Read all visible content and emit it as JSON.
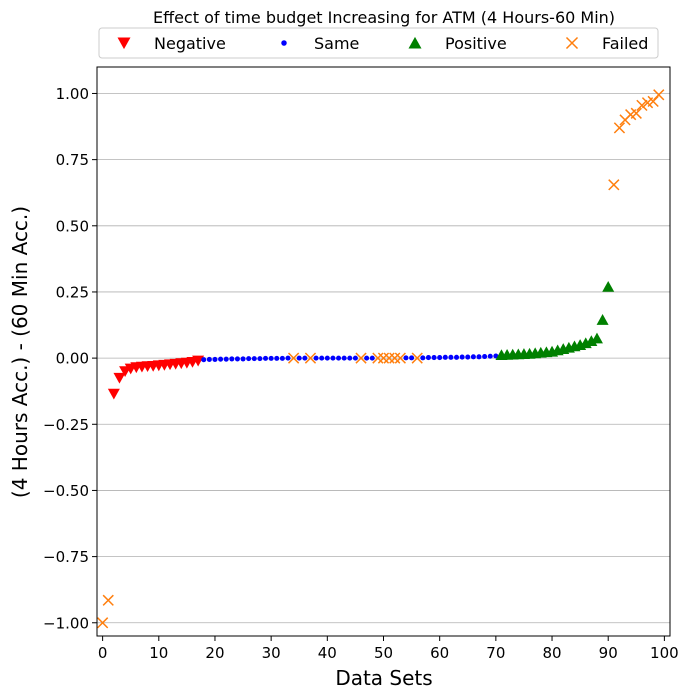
{
  "chart_data": {
    "type": "scatter",
    "title": "Effect of time budget Increasing for ATM (4 Hours-60 Min)",
    "xlabel": "Data Sets",
    "ylabel": "(4 Hours Acc.) - (60 Min Acc.)",
    "xlim": [
      -1,
      101
    ],
    "ylim": [
      -1.05,
      1.1
    ],
    "x_ticks": [
      0,
      10,
      20,
      30,
      40,
      50,
      60,
      70,
      80,
      90,
      100
    ],
    "x_tick_labels": [
      "0",
      "10",
      "20",
      "30",
      "40",
      "50",
      "60",
      "70",
      "80",
      "90",
      "100"
    ],
    "y_ticks": [
      -1.0,
      -0.75,
      -0.5,
      -0.25,
      0.0,
      0.25,
      0.5,
      0.75,
      1.0
    ],
    "y_tick_labels": [
      "−1.00",
      "−0.75",
      "−0.50",
      "−0.25",
      "0.00",
      "0.25",
      "0.50",
      "0.75",
      "1.00"
    ],
    "grid": "horizontal",
    "legend_position": "top",
    "series": [
      {
        "name": "Negative",
        "marker": "triangle-down",
        "color": "#ff0000",
        "points": [
          [
            2,
            -0.135
          ],
          [
            3,
            -0.075
          ],
          [
            4,
            -0.05
          ],
          [
            5,
            -0.04
          ],
          [
            6,
            -0.035
          ],
          [
            7,
            -0.033
          ],
          [
            8,
            -0.031
          ],
          [
            9,
            -0.03
          ],
          [
            10,
            -0.028
          ],
          [
            11,
            -0.026
          ],
          [
            12,
            -0.024
          ],
          [
            13,
            -0.022
          ],
          [
            14,
            -0.02
          ],
          [
            15,
            -0.018
          ],
          [
            16,
            -0.015
          ],
          [
            17,
            -0.01
          ]
        ]
      },
      {
        "name": "Same",
        "marker": "circle",
        "color": "#0000ff",
        "points": [
          [
            18,
            -0.006
          ],
          [
            19,
            -0.005
          ],
          [
            20,
            -0.005
          ],
          [
            21,
            -0.004
          ],
          [
            22,
            -0.004
          ],
          [
            23,
            -0.003
          ],
          [
            24,
            -0.003
          ],
          [
            25,
            -0.003
          ],
          [
            26,
            -0.002
          ],
          [
            27,
            -0.002
          ],
          [
            28,
            -0.002
          ],
          [
            29,
            -0.001
          ],
          [
            30,
            -0.001
          ],
          [
            31,
            -0.001
          ],
          [
            32,
            -0.001
          ],
          [
            33,
            0
          ],
          [
            35,
            0
          ],
          [
            36,
            0
          ],
          [
            38,
            0
          ],
          [
            39,
            0
          ],
          [
            40,
            0
          ],
          [
            41,
            0
          ],
          [
            42,
            0
          ],
          [
            43,
            0
          ],
          [
            44,
            0
          ],
          [
            45,
            0
          ],
          [
            47,
            0
          ],
          [
            48,
            0
          ],
          [
            54,
            0.001
          ],
          [
            55,
            0.001
          ],
          [
            57,
            0.001
          ],
          [
            58,
            0.002
          ],
          [
            59,
            0.002
          ],
          [
            60,
            0.002
          ],
          [
            61,
            0.003
          ],
          [
            62,
            0.003
          ],
          [
            63,
            0.003
          ],
          [
            64,
            0.004
          ],
          [
            65,
            0.004
          ],
          [
            66,
            0.005
          ],
          [
            67,
            0.005
          ],
          [
            68,
            0.006
          ],
          [
            69,
            0.007
          ],
          [
            70,
            0.008
          ]
        ]
      },
      {
        "name": "Positive",
        "marker": "triangle-up",
        "color": "#008000",
        "points": [
          [
            71,
            0.012
          ],
          [
            72,
            0.013
          ],
          [
            73,
            0.014
          ],
          [
            74,
            0.015
          ],
          [
            75,
            0.016
          ],
          [
            76,
            0.017
          ],
          [
            77,
            0.019
          ],
          [
            78,
            0.021
          ],
          [
            79,
            0.023
          ],
          [
            80,
            0.025
          ],
          [
            81,
            0.03
          ],
          [
            82,
            0.035
          ],
          [
            83,
            0.04
          ],
          [
            84,
            0.045
          ],
          [
            85,
            0.05
          ],
          [
            86,
            0.057
          ],
          [
            87,
            0.065
          ],
          [
            88,
            0.075
          ],
          [
            89,
            0.145
          ],
          [
            90,
            0.27
          ]
        ]
      },
      {
        "name": "Failed",
        "marker": "x",
        "color": "#ff7f0e",
        "points": [
          [
            0,
            -1.0
          ],
          [
            1,
            -0.915
          ],
          [
            34,
            0
          ],
          [
            37,
            0
          ],
          [
            46,
            0
          ],
          [
            49,
            0
          ],
          [
            50,
            0
          ],
          [
            51,
            0
          ],
          [
            52,
            0
          ],
          [
            53,
            0
          ],
          [
            56,
            0
          ],
          [
            91,
            0.655
          ],
          [
            92,
            0.87
          ],
          [
            93,
            0.9
          ],
          [
            94,
            0.92
          ],
          [
            95,
            0.925
          ],
          [
            96,
            0.955
          ],
          [
            97,
            0.965
          ],
          [
            98,
            0.97
          ],
          [
            99,
            0.995
          ]
        ]
      }
    ]
  }
}
